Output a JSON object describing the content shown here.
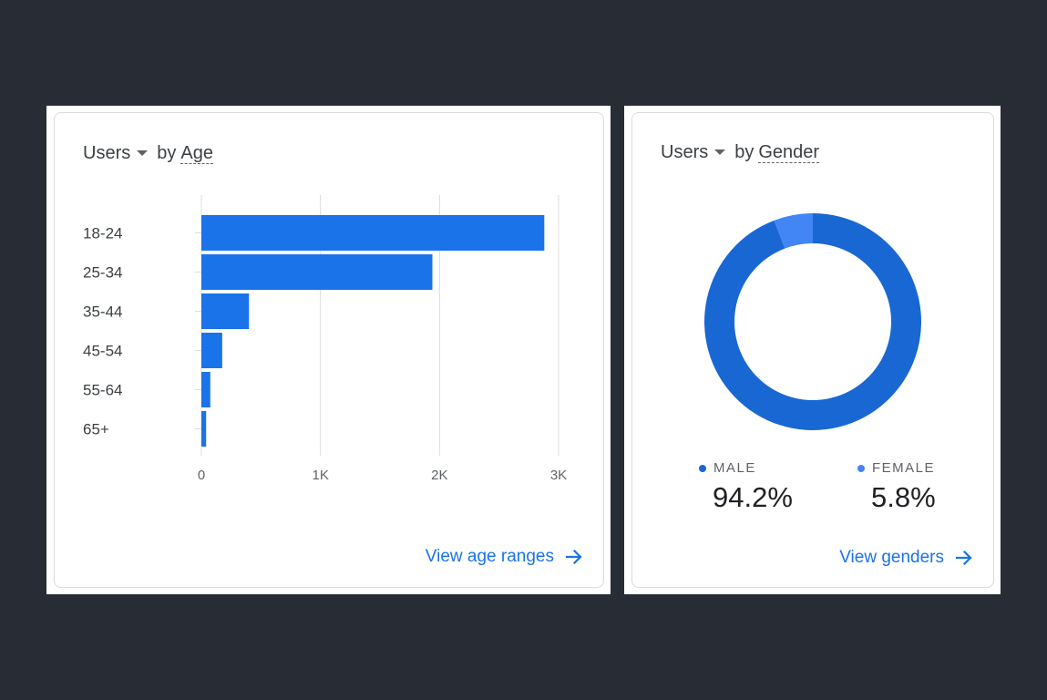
{
  "age_card": {
    "metric": "Users",
    "by": "by",
    "dimension": "Age",
    "link_label": "View age ranges",
    "bar_color": "#1a73e8",
    "chart_data": {
      "type": "bar",
      "orientation": "horizontal",
      "categories": [
        "18-24",
        "25-34",
        "35-44",
        "45-54",
        "55-64",
        "65+"
      ],
      "values": [
        2880,
        1940,
        400,
        175,
        75,
        40
      ],
      "x_ticks": [
        0,
        1000,
        2000,
        3000
      ],
      "x_tick_labels": [
        "0",
        "1K",
        "2K",
        "3K"
      ],
      "xlim": [
        0,
        3000
      ],
      "grid": true
    }
  },
  "gender_card": {
    "metric": "Users",
    "by": "by",
    "dimension": "Gender",
    "link_label": "View genders",
    "chart_data": {
      "type": "pie",
      "donut": true,
      "categories": [
        "MALE",
        "FEMALE"
      ],
      "values": [
        94.2,
        5.8
      ],
      "value_labels": [
        "94.2%",
        "5.8%"
      ],
      "colors": [
        "#1967d2",
        "#4285f4"
      ]
    }
  }
}
